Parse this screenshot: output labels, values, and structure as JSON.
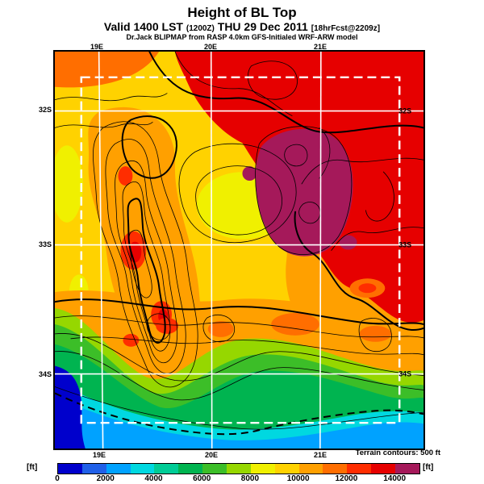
{
  "header": {
    "title": "Height of BL Top",
    "valid": {
      "prefix": "Valid 1400 LST",
      "zulu": "(1200Z)",
      "date": "THU 29 Dec 2011",
      "fcst": "[18hrFcst@2209z]"
    },
    "model_line": "Dr.Jack BLIPMAP from RASP 4.0km GFS-Initialed WRF-ARW model"
  },
  "map": {
    "lon_labels_top": [
      "19E",
      "20E",
      "21E"
    ],
    "lon_labels_bottom": [
      "19E",
      "20E",
      "21E"
    ],
    "lat_labels_left": [
      "32S",
      "33S",
      "34S"
    ],
    "lat_labels_right": [
      "32S",
      "33S",
      "34S"
    ],
    "note": "Terrain contours: 500 ft"
  },
  "colorbar": {
    "unit_left": "[ft]",
    "unit_right": "[ft]",
    "tick_labels": [
      "0",
      "2000",
      "4000",
      "6000",
      "8000",
      "10000",
      "12000",
      "14000"
    ],
    "segment_colors": [
      "#0000CC",
      "#2060E8",
      "#00A2FF",
      "#00D8E0",
      "#00CC96",
      "#00B450",
      "#3CBE28",
      "#96D700",
      "#F0F000",
      "#FFD200",
      "#FFA000",
      "#FF6E00",
      "#FF2D00",
      "#E60000",
      "#A5195A"
    ]
  },
  "chart_data": {
    "type": "heatmap",
    "title": "Height of BL Top",
    "units": "ft",
    "scale_min": 0,
    "scale_max": 14000,
    "scale_step": 1000,
    "x_ticks": [
      "19E",
      "20E",
      "21E"
    ],
    "y_ticks": [
      "32S",
      "33S",
      "34S"
    ],
    "annotation": "Terrain contours: 500 ft"
  },
  "palette": {
    "navy": "#0000CC",
    "blue": "#00A2FF",
    "cyan": "#00D8E0",
    "teal": "#00CC96",
    "dgreen": "#00B450",
    "green": "#3CBE28",
    "ygreen": "#96D700",
    "yellow": "#F0F000",
    "gold": "#FFD200",
    "orange": "#FFA000",
    "dorange": "#FF6E00",
    "orangered": "#FF2D00",
    "red": "#E60000",
    "maroon": "#A5195A"
  }
}
